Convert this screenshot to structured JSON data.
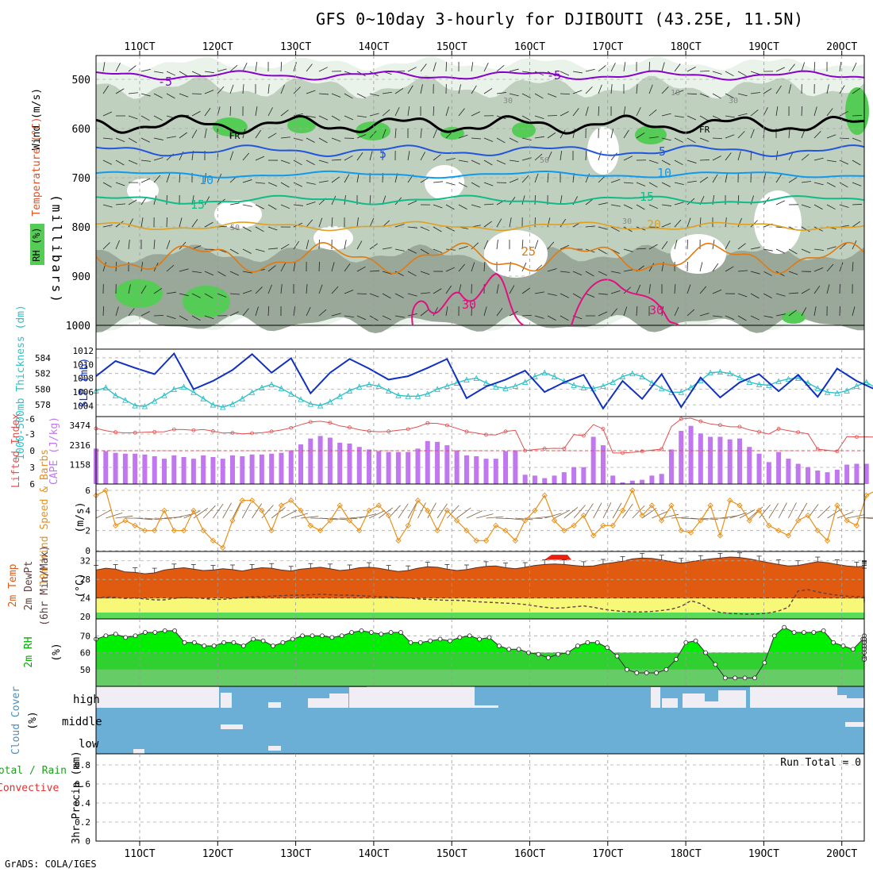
{
  "header": {
    "title": "GFS 0~10day 3-hourly for DJIBOUTI (43.25E, 11.5N)",
    "credit": "GrADS: COLA/IGES"
  },
  "colors": {
    "temp_minus5": "#8800cc",
    "freezing": "#000000",
    "temp5": "#2255dd",
    "temp10": "#1199ee",
    "temp15": "#11bb88",
    "temp20": "#e0a020",
    "temp25": "#e07a10",
    "temp30": "#e01080",
    "rh_light": "#e8f2e8",
    "rh_mid": "#b8ccb8",
    "rh_dark": "#909e90",
    "rh_green": "#55cc55",
    "slp": "#1030c0",
    "thickness": "#30c0c8",
    "lifted": "#e05050",
    "cape": "#c077f0",
    "wind": "#e8901a",
    "barb": "#806040",
    "temp_fill_dark": "#e05a10",
    "temp_fill_red": "#e82010",
    "temp_band_orange": "#ffa030",
    "temp_band_yellow": "#f8f878",
    "temp_band_green": "#55dd55",
    "rh2_bright": "#00ee00",
    "rh2_mid": "#30d030",
    "rh2_low": "#66cc66",
    "cloud": "#6baed6",
    "cloud_gap": "#f0eef4"
  },
  "xaxis": {
    "ticks": [
      "11OCT",
      "12OCT",
      "13OCT",
      "14OCT",
      "15OCT",
      "16OCT",
      "17OCT",
      "18OCT",
      "19OCT",
      "20OCT"
    ]
  },
  "panels": {
    "upper": {
      "ylabel": "(millibars)",
      "label_wind": "Wind (m/s)",
      "label_temp": "Temperature (°C)",
      "label_rh": "RH (%)",
      "yticks": [
        "500",
        "600",
        "700",
        "800",
        "900",
        "1000"
      ],
      "contour_labels": {
        "m5": "-5",
        "fr": "FR",
        "t5": "5",
        "t10": "10",
        "t15": "15",
        "t20": "20",
        "t25": "25",
        "t30": "30",
        "rh30": "30",
        "rh50": "50",
        "rh10": "10"
      }
    },
    "pressure": {
      "left_label": "1000-500mb Thickness (dm)",
      "right_label": "SLP (mb)",
      "left_ticks": [
        "584",
        "582",
        "580",
        "578"
      ],
      "right_ticks": [
        "1012",
        "1010",
        "1008",
        "1006",
        "1004"
      ]
    },
    "cape": {
      "left_label": "Lifted Index",
      "right_label": "CAPE (J/kg)",
      "left_ticks": [
        "-3",
        "0",
        "3",
        "6"
      ],
      "right_ticks": [
        "3474",
        "2316",
        "1158"
      ],
      "top_tick": "-6"
    },
    "wind": {
      "label": "10m Wind Speed & Barbs",
      "units": "(m/s)",
      "ticks": [
        "6",
        "4",
        "2",
        "0"
      ]
    },
    "temp": {
      "label1": "2m Temp",
      "label2": "2m DewPt",
      "label3": "(6hr Min/Max)",
      "units": "(°C)",
      "ticks": [
        "32",
        "28",
        "24",
        "20"
      ]
    },
    "rh": {
      "label": "2m RH",
      "units": "(%)",
      "ticks": [
        "70",
        "60",
        "50"
      ]
    },
    "cloud": {
      "label": "Cloud Cover",
      "units": "(%)",
      "levels": [
        "high",
        "middle",
        "low"
      ]
    },
    "precip": {
      "label_total": "Total / Rain",
      "label_conv": "Convective",
      "ylabel": "3hr Precip (mm)",
      "ticks": [
        "0.8",
        "0.6",
        "0.4",
        "0.2",
        "0"
      ],
      "run_total": "Run Total = 0"
    }
  },
  "chart_data": [
    {
      "type": "line",
      "title": "1000-500mb Thickness (dm)",
      "x_start": "10OCT 12Z",
      "step_hours": 3,
      "values": [
        579.8,
        580.2,
        579.2,
        578.6,
        577.9,
        577.8,
        578.5,
        579.2,
        580.0,
        580.3,
        579.6,
        578.8,
        578.0,
        577.7,
        578.1,
        578.8,
        579.6,
        580.2,
        580.6,
        580.1,
        579.4,
        578.7,
        578.1,
        577.9,
        578.4,
        579.1,
        579.8,
        580.3,
        580.6,
        580.4,
        579.8,
        579.2,
        579.1,
        579.1,
        579.4,
        580.0,
        580.4,
        580.8,
        581.2,
        581.4,
        580.8,
        580.3,
        580.1,
        580.4,
        580.9,
        581.6,
        582.1,
        581.6,
        581.0,
        580.5,
        580.2,
        580.1,
        580.4,
        580.9,
        581.6,
        582.0,
        581.6,
        580.8,
        580.1,
        579.6,
        579.6,
        580.2,
        581.1,
        582.1,
        582.2,
        582.0,
        581.5,
        580.9,
        580.6,
        580.5,
        581.0,
        581.3,
        581.4,
        580.8,
        580.1,
        579.6,
        579.5,
        579.8,
        580.4,
        580.9,
        580.1,
        579.6,
        579.5,
        579.8,
        580.2,
        580.7,
        580.9,
        580.4,
        580.0
      ]
    },
    {
      "type": "line",
      "title": "SLP (mb)",
      "x_start": "10OCT 12Z",
      "step_hours": 6,
      "values": [
        1008.3,
        1010.5,
        1009.5,
        1008.6,
        1011.6,
        1006.4,
        1007.6,
        1009.2,
        1011.5,
        1008.8,
        1010.9,
        1005.8,
        1008.8,
        1010.8,
        1009.4,
        1007.8,
        1008.3,
        1009.5,
        1010.8,
        1005.1,
        1006.8,
        1007.8,
        1009.1,
        1006.0,
        1007.4,
        1008.5,
        1003.6,
        1007.6,
        1005.0,
        1008.6,
        1003.8,
        1008.1,
        1005.2,
        1007.4,
        1008.6,
        1006.1,
        1008.5,
        1005.3,
        1009.4,
        1007.6,
        1006.3,
        1008.2,
        1006.2,
        1008.5,
        1006.1,
        1008.8
      ]
    },
    {
      "type": "bar",
      "title": "CAPE (J/kg)",
      "x_start": "10OCT 12Z",
      "step_hours": 3,
      "values": [
        2100,
        1950,
        1850,
        1800,
        1800,
        1750,
        1650,
        1500,
        1700,
        1600,
        1500,
        1700,
        1600,
        1500,
        1700,
        1650,
        1750,
        1750,
        1800,
        1850,
        2000,
        2350,
        2700,
        2850,
        2750,
        2450,
        2400,
        2200,
        2050,
        1950,
        1900,
        1900,
        1900,
        2100,
        2550,
        2500,
        2300,
        2000,
        1700,
        1650,
        1500,
        1500,
        1950,
        2000,
        550,
        500,
        350,
        500,
        700,
        1000,
        1000,
        2800,
        2300,
        500,
        100,
        200,
        250,
        500,
        600,
        2050,
        3150,
        3450,
        3000,
        2800,
        2800,
        2650,
        2700,
        2200,
        1800,
        1300,
        1900,
        1500,
        1200,
        1000,
        800,
        700,
        850,
        1150,
        1200,
        1200,
        1100,
        900,
        750,
        600,
        1100,
        1000,
        950,
        900,
        900,
        1050
      ]
    },
    {
      "type": "line",
      "title": "10m Wind Speed (m/s)",
      "x_start": "10OCT 12Z",
      "step_hours": 3,
      "values": [
        5.5,
        6.0,
        2.5,
        3.0,
        2.5,
        2.0,
        2.0,
        4.0,
        2.0,
        2.0,
        4.0,
        2.0,
        1.0,
        0.3,
        3.0,
        5.0,
        5.0,
        4.0,
        2.0,
        4.5,
        5.0,
        4.0,
        2.5,
        2.0,
        3.0,
        4.5,
        3.0,
        2.0,
        4.0,
        4.5,
        3.5,
        1.0,
        2.5,
        5.0,
        4.0,
        2.0,
        4.0,
        3.0,
        2.0,
        1.0,
        1.0,
        2.5,
        2.0,
        1.0,
        3.0,
        4.0,
        5.5,
        3.0,
        2.0,
        2.5,
        3.5,
        1.5,
        2.5,
        2.5,
        4.0,
        6.0,
        3.5,
        4.5,
        3.0,
        4.5,
        2.0,
        1.8,
        3.0,
        4.5,
        1.5,
        5.0,
        4.5,
        3.0,
        4.0,
        2.5,
        2.0,
        1.5,
        3.0,
        3.5,
        2.0,
        1.0,
        4.5,
        3.0,
        2.5,
        5.5,
        6.0,
        4.5,
        2.5,
        3.0,
        1.0,
        1.5,
        2.5,
        4.0,
        3.5,
        5.0,
        4.0,
        3.0,
        1.0,
        3.0,
        1.5,
        2.0,
        4.5,
        2.5,
        3.5,
        4.0,
        3.0,
        1.0,
        1.0
      ]
    },
    {
      "type": "area",
      "title": "2m Temp (°C)",
      "x_start": "10OCT 12Z",
      "step_hours": 3,
      "values": [
        30.0,
        30.4,
        30.2,
        29.6,
        29.5,
        29.2,
        29.4,
        30.0,
        30.3,
        30.5,
        30.2,
        29.9,
        30.0,
        30.3,
        30.1,
        29.8,
        30.2,
        30.5,
        30.4,
        30.0,
        29.8,
        30.2,
        30.4,
        30.6,
        30.3,
        29.9,
        30.1,
        30.5,
        30.6,
        30.4,
        30.0,
        29.7,
        29.9,
        30.4,
        30.7,
        30.6,
        30.2,
        29.9,
        30.1,
        30.5,
        30.8,
        30.9,
        30.5,
        30.3,
        30.6,
        31.0,
        31.2,
        31.3,
        31.2,
        31.0,
        30.8,
        30.9,
        31.3,
        31.6,
        31.9,
        32.4,
        32.6,
        32.5,
        32.2,
        31.8,
        31.5,
        31.8,
        32.1,
        32.4,
        32.6,
        32.8,
        32.7,
        32.4,
        32.0,
        31.6,
        31.2,
        30.9,
        31.0,
        31.4,
        31.8,
        31.6,
        31.2,
        30.9,
        30.7,
        30.8,
        31.0,
        31.2,
        31.0,
        30.7,
        30.6,
        30.8,
        30.9,
        30.6,
        30.3,
        30.5,
        30.9,
        31.0,
        30.8,
        30.3,
        30.0,
        29.6,
        29.4,
        29.5,
        30.0,
        30.3
      ]
    },
    {
      "type": "line",
      "title": "2m DewPt (°C)",
      "x_start": "10OCT 12Z",
      "step_hours": 3,
      "values": [
        24.0,
        24.2,
        24.1,
        23.9,
        24.0,
        23.8,
        23.6,
        23.6,
        23.9,
        24.1,
        24.0,
        23.9,
        23.7,
        23.7,
        23.9,
        24.1,
        24.3,
        24.3,
        24.4,
        24.5,
        24.6,
        24.6,
        24.7,
        24.8,
        24.7,
        24.6,
        24.6,
        24.5,
        24.4,
        24.3,
        24.2,
        24.1,
        24.0,
        23.8,
        23.7,
        23.6,
        23.5,
        23.5,
        23.4,
        23.2,
        23.1,
        23.0,
        22.9,
        22.8,
        22.6,
        22.3,
        22.0,
        21.8,
        21.9,
        22.1,
        22.3,
        22.0,
        21.6,
        21.3,
        21.1,
        21.0,
        21.0,
        21.1,
        21.3,
        21.6,
        22.2,
        23.4,
        22.8,
        21.5,
        20.9,
        20.7,
        20.6,
        20.5,
        20.6,
        20.8,
        21.2,
        22.0,
        25.5,
        25.8,
        25.3,
        24.9,
        24.6,
        24.4,
        24.3,
        24.2,
        24.1,
        24.0,
        23.9,
        23.8,
        23.7,
        23.8,
        23.9,
        23.8,
        23.7,
        23.6,
        23.5,
        23.4,
        23.2,
        23.1,
        23.0,
        22.9,
        22.8,
        22.8,
        22.9,
        23.0
      ]
    },
    {
      "type": "area",
      "title": "2m RH (%)",
      "x_start": "10OCT 12Z",
      "step_hours": 3,
      "values": [
        68,
        70,
        71,
        69,
        70,
        72,
        72,
        73,
        73,
        66,
        66,
        64,
        64,
        66,
        66,
        64,
        68,
        67,
        64,
        66,
        68,
        70,
        70,
        70,
        69,
        70,
        72,
        73,
        72,
        71,
        72,
        72,
        66,
        66,
        67,
        68,
        67,
        69,
        70,
        68,
        69,
        64,
        62,
        62,
        60,
        59,
        57,
        59,
        60,
        64,
        66,
        66,
        63,
        58,
        50,
        48,
        48,
        48,
        50,
        56,
        66,
        67,
        60,
        53,
        45,
        45,
        45,
        45,
        54,
        70,
        75,
        72,
        72,
        72,
        73,
        66,
        64,
        62,
        68,
        64,
        68,
        68,
        67,
        68,
        63,
        60,
        56,
        57,
        57,
        56,
        62,
        64,
        66,
        68,
        68,
        70,
        60,
        62,
        66,
        66,
        67,
        66,
        66,
        68,
        67,
        68,
        66
      ]
    },
    {
      "type": "bar",
      "title": "3hr Precip (mm)",
      "run_total": 0,
      "values": [
        0
      ],
      "ylim": [
        0,
        0.9
      ]
    }
  ]
}
